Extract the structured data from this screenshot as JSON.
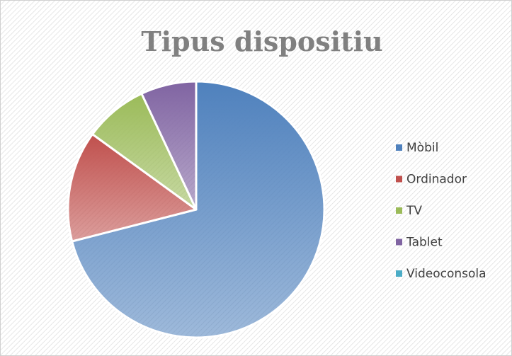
{
  "chart_data": {
    "type": "pie",
    "title": "Tipus dispositiu",
    "categories": [
      "Mòbil",
      "Ordinador",
      "TV",
      "Tablet",
      "Videoconsola"
    ],
    "values": [
      71,
      14,
      8,
      7,
      0
    ],
    "colors": [
      "#4f81bd",
      "#c0504d",
      "#9bbb59",
      "#8064a2",
      "#4bacc6"
    ],
    "legend": "right"
  }
}
